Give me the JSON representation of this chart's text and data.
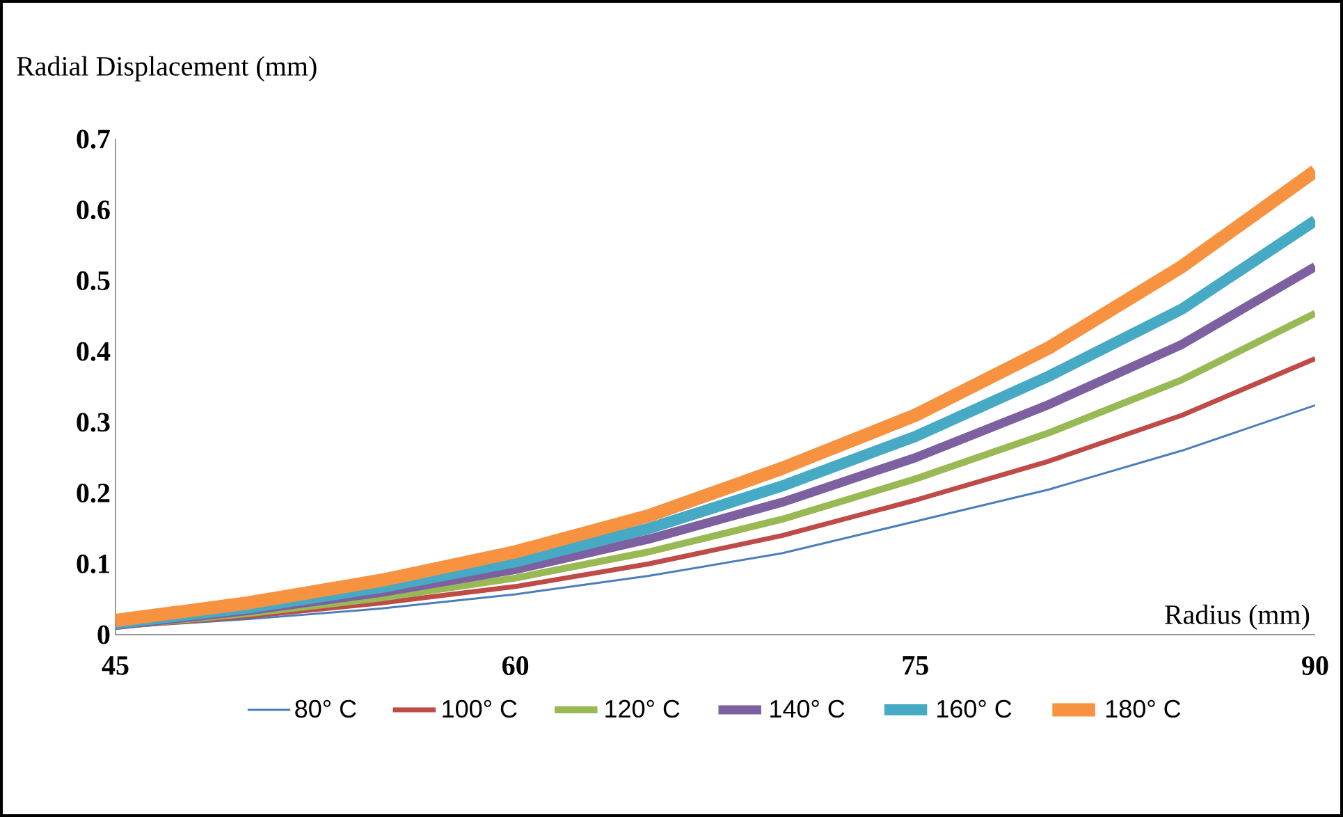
{
  "chart_data": {
    "type": "line",
    "ylabel": "Radial Displacement (mm)",
    "xlabel": "Radius (mm)",
    "x": [
      45,
      50,
      55,
      60,
      65,
      70,
      75,
      80,
      85,
      90
    ],
    "xlim": [
      45,
      90
    ],
    "xticks": [
      45,
      60,
      75,
      90
    ],
    "ylim": [
      0,
      0.7
    ],
    "yticks": [
      0,
      0.1,
      0.2,
      0.3,
      0.4,
      0.5,
      0.6,
      0.7
    ],
    "grid": false,
    "legend": "bottom",
    "marker": "none",
    "line_style": "solid",
    "series": [
      {
        "name": "80° C",
        "color": "#4a7ebb",
        "values": [
          0.01,
          0.022,
          0.037,
          0.057,
          0.083,
          0.115,
          0.16,
          0.205,
          0.26,
          0.324
        ]
      },
      {
        "name": "100° C",
        "color": "#be4b48",
        "values": [
          0.011,
          0.026,
          0.045,
          0.068,
          0.1,
          0.14,
          0.19,
          0.245,
          0.31,
          0.39
        ]
      },
      {
        "name": "120° C",
        "color": "#98b954",
        "values": [
          0.012,
          0.03,
          0.052,
          0.08,
          0.117,
          0.163,
          0.22,
          0.285,
          0.36,
          0.454
        ]
      },
      {
        "name": "140° C",
        "color": "#7d60a0",
        "values": [
          0.013,
          0.034,
          0.06,
          0.092,
          0.135,
          0.187,
          0.25,
          0.325,
          0.41,
          0.52
        ]
      },
      {
        "name": "160° C",
        "color": "#46aac5",
        "values": [
          0.016,
          0.038,
          0.067,
          0.103,
          0.15,
          0.21,
          0.28,
          0.365,
          0.46,
          0.585
        ]
      },
      {
        "name": "180° C",
        "color": "#f69240",
        "values": [
          0.02,
          0.045,
          0.077,
          0.117,
          0.168,
          0.235,
          0.31,
          0.405,
          0.52,
          0.655
        ]
      }
    ]
  }
}
